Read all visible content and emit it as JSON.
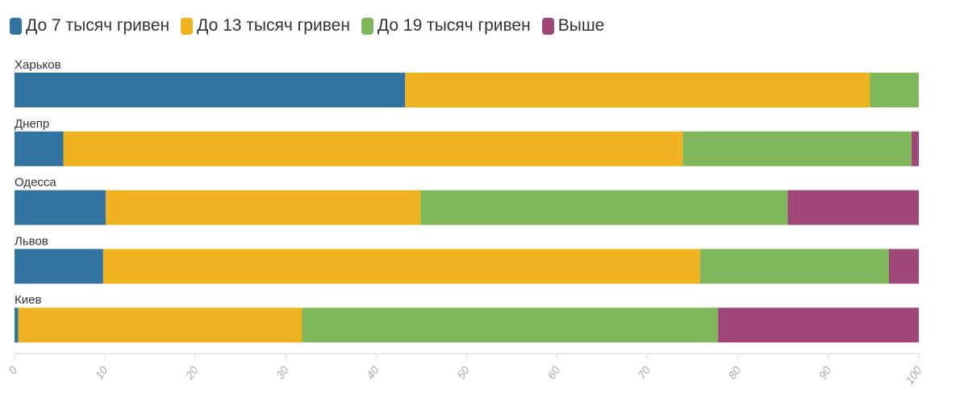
{
  "chart_data": {
    "type": "bar",
    "orientation": "horizontal",
    "stacked": true,
    "categories": [
      "Харьков",
      "Днепр",
      "Одесса",
      "Львов",
      "Киев"
    ],
    "series": [
      {
        "name": "До 7 тысяч гривен",
        "color": "#3274a1",
        "values": [
          43.2,
          5.4,
          10.1,
          9.8,
          0.4
        ]
      },
      {
        "name": "До 13 тысяч гривен",
        "color": "#efb320",
        "values": [
          51.4,
          68.5,
          34.8,
          66.0,
          31.4
        ]
      },
      {
        "name": "До 19 тысяч гривен",
        "color": "#80b75a",
        "values": [
          5.4,
          25.3,
          40.6,
          20.9,
          46.0
        ]
      },
      {
        "name": "Выше",
        "color": "#9f4878",
        "values": [
          0,
          0.8,
          14.5,
          3.3,
          22.2
        ]
      }
    ],
    "xlim": [
      0,
      100
    ],
    "xticks": [
      "0",
      "10",
      "20",
      "30",
      "40",
      "50",
      "60",
      "70",
      "80",
      "90",
      "100"
    ],
    "legend": "top-left",
    "grid": false
  }
}
